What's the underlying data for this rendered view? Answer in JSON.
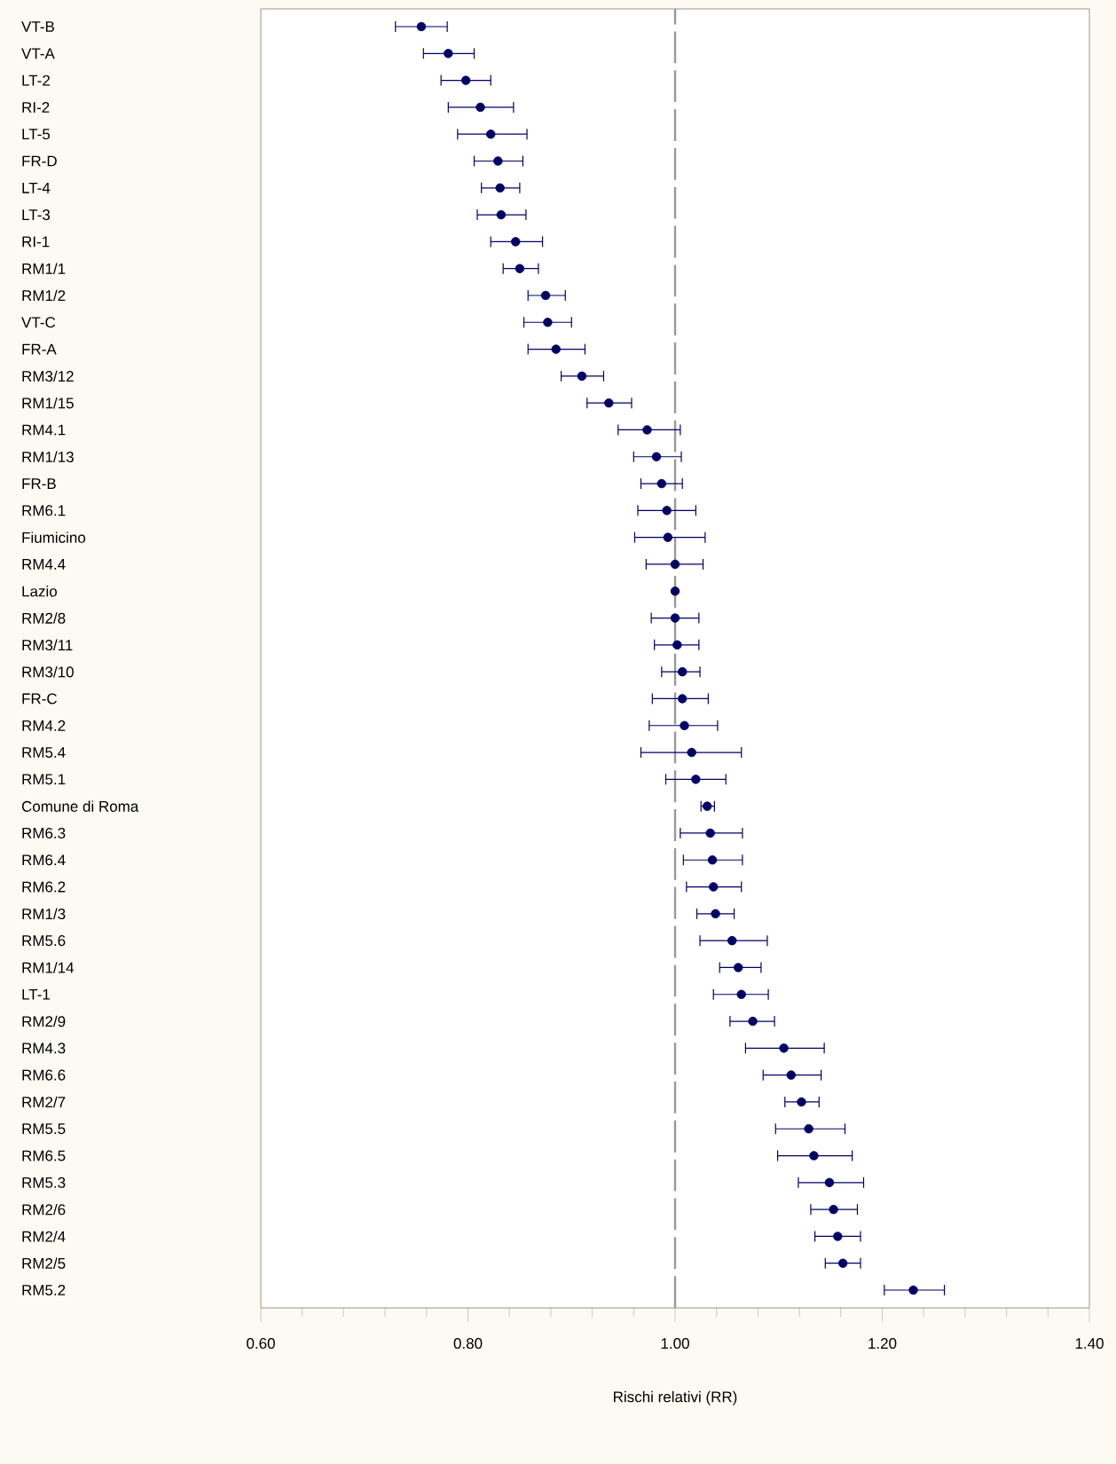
{
  "chart_data": {
    "type": "scatter",
    "orientation": "horizontal",
    "xlabel": "Rischi relativi (RR)",
    "color": "#000066",
    "marker": "circle",
    "categories": [
      "VT-B",
      "VT-A",
      "LT-2",
      "RI-2",
      "LT-5",
      "FR-D",
      "LT-4",
      "LT-3",
      "RI-1",
      "RM1/1",
      "RM1/2",
      "VT-C",
      "FR-A",
      "RM3/12",
      "RM1/15",
      "RM4.1",
      "RM1/13",
      "FR-B",
      "RM6.1",
      "Fiumicino",
      "RM4.4",
      "Lazio",
      "RM2/8",
      "RM3/11",
      "RM3/10",
      "FR-C",
      "RM4.2",
      "RM5.4",
      "RM5.1",
      "Comune di Roma",
      "RM6.3",
      "RM6.4",
      "RM6.2",
      "RM1/3",
      "RM5.6",
      "RM1/14",
      "LT-1",
      "RM2/9",
      "RM4.3",
      "RM6.6",
      "RM2/7",
      "RM5.5",
      "RM6.5",
      "RM5.3",
      "RM2/6",
      "RM2/4",
      "RM2/5",
      "RM5.2"
    ],
    "values": [
      0.755,
      0.781,
      0.798,
      0.812,
      0.822,
      0.829,
      0.831,
      0.832,
      0.846,
      0.85,
      0.875,
      0.877,
      0.885,
      0.91,
      0.936,
      0.973,
      0.982,
      0.987,
      0.992,
      0.993,
      1.0,
      1.0,
      1.0,
      1.002,
      1.007,
      1.007,
      1.009,
      1.016,
      1.02,
      1.031,
      1.034,
      1.036,
      1.037,
      1.039,
      1.055,
      1.061,
      1.064,
      1.075,
      1.105,
      1.112,
      1.122,
      1.129,
      1.134,
      1.149,
      1.153,
      1.157,
      1.162,
      1.23
    ],
    "errors": [
      [
        0.73,
        0.78
      ],
      [
        0.757,
        0.806
      ],
      [
        0.774,
        0.822
      ],
      [
        0.781,
        0.844
      ],
      [
        0.79,
        0.857
      ],
      [
        0.806,
        0.853
      ],
      [
        0.813,
        0.85
      ],
      [
        0.809,
        0.856
      ],
      [
        0.822,
        0.872
      ],
      [
        0.834,
        0.868
      ],
      [
        0.858,
        0.894
      ],
      [
        0.854,
        0.9
      ],
      [
        0.858,
        0.913
      ],
      [
        0.89,
        0.931
      ],
      [
        0.915,
        0.958
      ],
      [
        0.945,
        1.005
      ],
      [
        0.96,
        1.006
      ],
      [
        0.967,
        1.007
      ],
      [
        0.964,
        1.02
      ],
      [
        0.961,
        1.029
      ],
      [
        0.972,
        1.027
      ],
      null,
      [
        0.977,
        1.023
      ],
      [
        0.98,
        1.023
      ],
      [
        0.987,
        1.024
      ],
      [
        0.978,
        1.032
      ],
      [
        0.975,
        1.041
      ],
      [
        0.967,
        1.064
      ],
      [
        0.991,
        1.049
      ],
      [
        1.025,
        1.038
      ],
      [
        1.005,
        1.065
      ],
      [
        1.008,
        1.065
      ],
      [
        1.011,
        1.064
      ],
      [
        1.021,
        1.057
      ],
      [
        1.024,
        1.089
      ],
      [
        1.043,
        1.083
      ],
      [
        1.037,
        1.09
      ],
      [
        1.053,
        1.096
      ],
      [
        1.068,
        1.144
      ],
      [
        1.085,
        1.141
      ],
      [
        1.106,
        1.139
      ],
      [
        1.097,
        1.164
      ],
      [
        1.099,
        1.171
      ],
      [
        1.119,
        1.182
      ],
      [
        1.131,
        1.176
      ],
      [
        1.135,
        1.179
      ],
      [
        1.145,
        1.179
      ],
      [
        1.202,
        1.26
      ]
    ],
    "xlim": [
      0.6,
      1.4
    ],
    "xticks": [
      {
        "value": 0.6,
        "label": "0.60"
      },
      {
        "value": 0.8,
        "label": "0.80"
      },
      {
        "value": 1.0,
        "label": "1.00"
      },
      {
        "value": 1.2,
        "label": "1.20"
      },
      {
        "value": 1.4,
        "label": "1.40"
      }
    ],
    "ref_lines": [
      {
        "axis": "x",
        "value": 1.0,
        "color": "#999999",
        "line_style": "dashed"
      }
    ]
  }
}
